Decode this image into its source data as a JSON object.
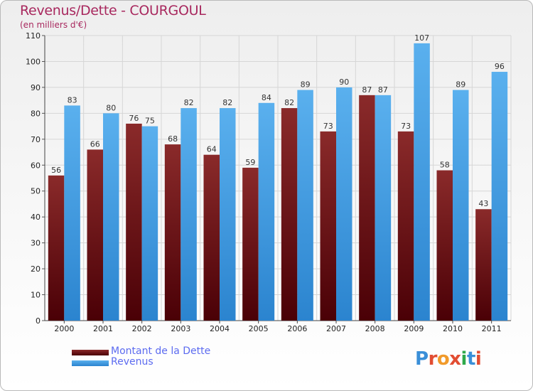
{
  "header": {
    "title": "Revenus/Dette - COURGOUL",
    "subtitle": "(en milliers d'€)"
  },
  "legend": {
    "items": [
      {
        "label": "Montant de la Dette",
        "color": "#6b0f14"
      },
      {
        "label": "Revenus",
        "color": "#3d9ee6"
      }
    ]
  },
  "logo": {
    "text": "Proxiti"
  },
  "chart_data": {
    "type": "bar",
    "categories": [
      "2000",
      "2001",
      "2002",
      "2003",
      "2004",
      "2005",
      "2006",
      "2007",
      "2008",
      "2009",
      "2010",
      "2011"
    ],
    "series": [
      {
        "name": "Montant de la Dette",
        "color": "#6b0f14",
        "values": [
          56,
          66,
          76,
          68,
          64,
          59,
          82,
          73,
          87,
          73,
          58,
          43
        ]
      },
      {
        "name": "Revenus",
        "color": "#3d9ee6",
        "values": [
          83,
          80,
          75,
          82,
          82,
          84,
          89,
          90,
          87,
          107,
          89,
          96
        ]
      }
    ],
    "title": "Revenus/Dette - COURGOUL",
    "subtitle": "(en milliers d'€)",
    "ylim": [
      0,
      110
    ],
    "yticks": [
      0,
      10,
      20,
      30,
      40,
      50,
      60,
      70,
      80,
      90,
      100,
      110
    ],
    "grid": true,
    "legend_position": "bottom-left"
  }
}
